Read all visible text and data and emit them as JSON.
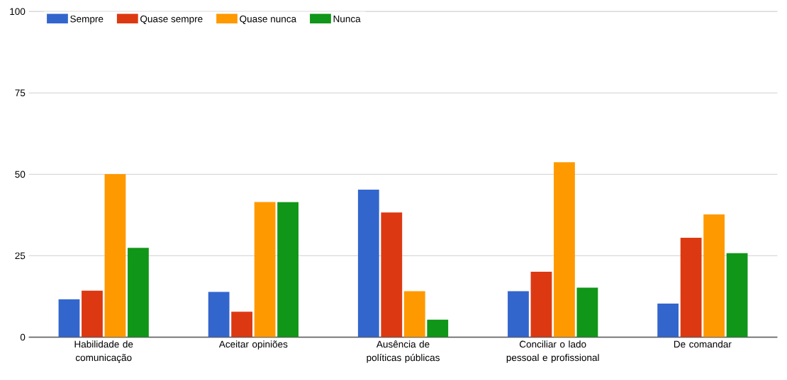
{
  "chart_data": {
    "type": "bar",
    "categories": [
      "Habilidade de comunicação",
      "Aceitar opiniões",
      "Ausência de políticas públicas",
      "Conciliar o lado pessoal e profissional",
      "De comandar"
    ],
    "series": [
      {
        "name": "Sempre",
        "color": "#3366cc",
        "values": [
          11.6,
          13.9,
          45.3,
          14.1,
          10.3
        ]
      },
      {
        "name": "Quase sempre",
        "color": "#dc3912",
        "values": [
          14.3,
          7.8,
          38.3,
          20.1,
          30.5
        ]
      },
      {
        "name": "Quase nunca",
        "color": "#ff9900",
        "values": [
          50.1,
          41.5,
          14.1,
          53.7,
          37.7
        ]
      },
      {
        "name": "Nunca",
        "color": "#109618",
        "values": [
          27.4,
          41.5,
          5.4,
          15.2,
          25.8
        ]
      }
    ],
    "ylim": [
      0,
      100
    ],
    "yticks": [
      0,
      25,
      50,
      75,
      100
    ],
    "grid": "y",
    "legend": "top left"
  }
}
